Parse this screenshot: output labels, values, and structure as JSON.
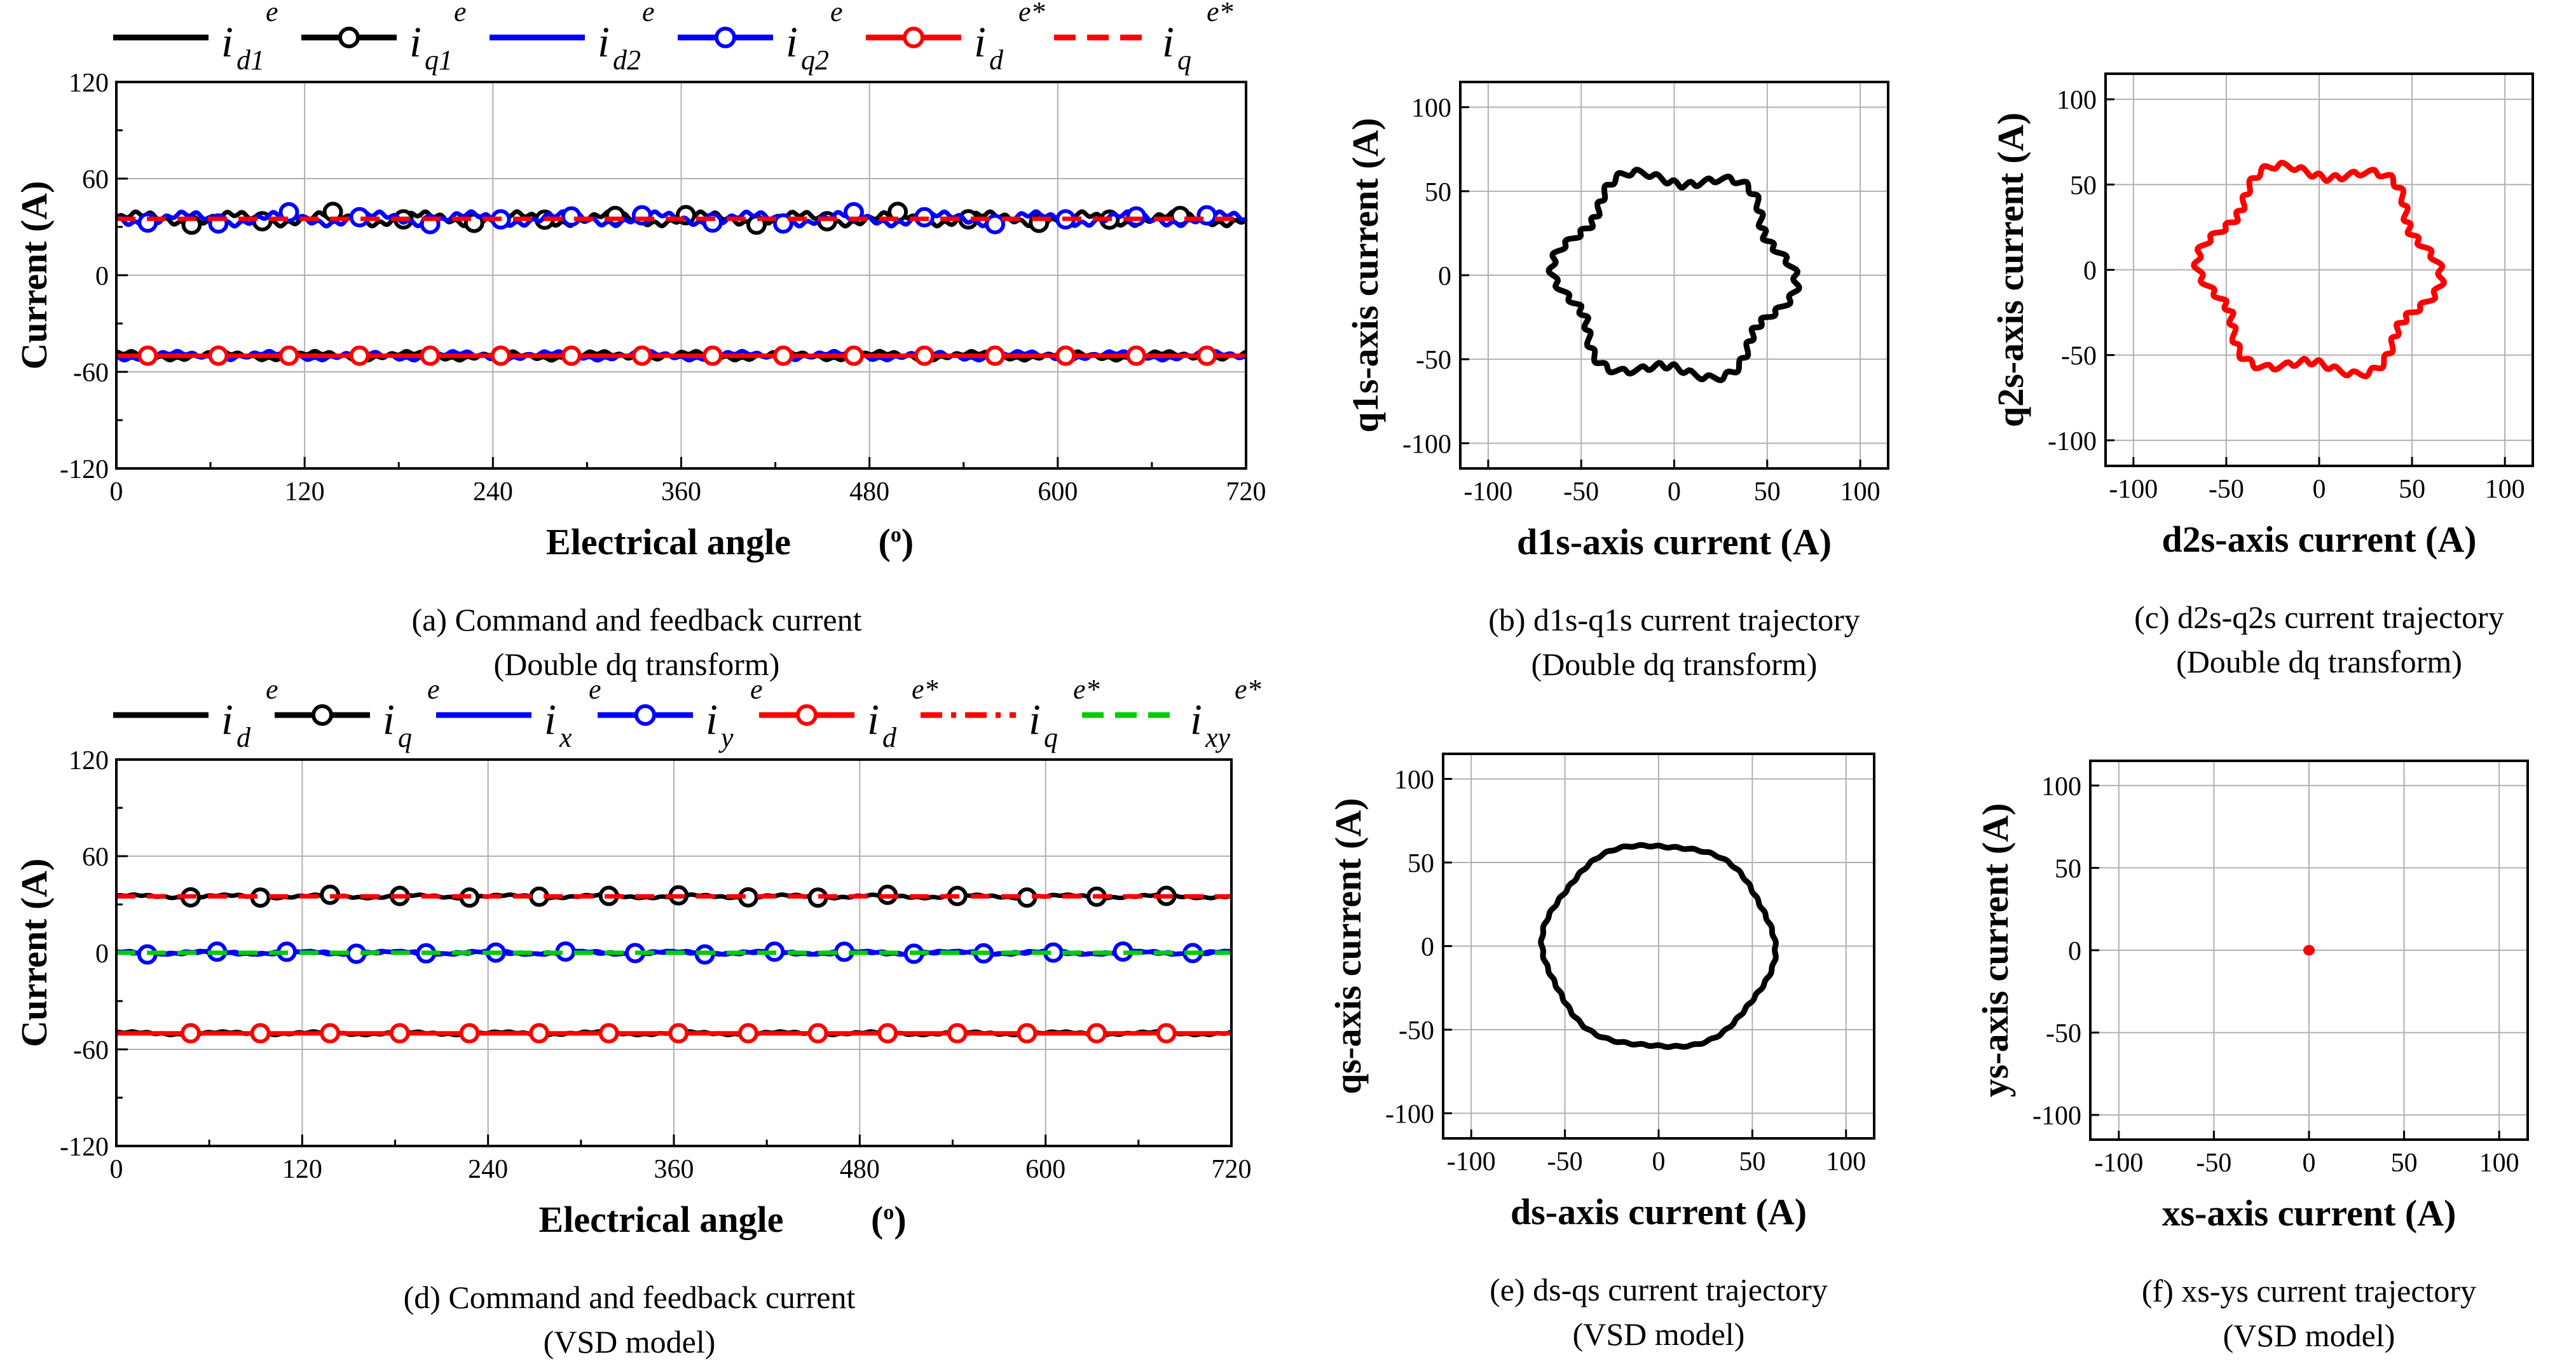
{
  "chart_data": [
    {
      "id": "a",
      "type": "line",
      "caption_line1": "(a)   Command and feedback current",
      "caption_line2": "(Double dq transform)",
      "xlabel": "Electrical angle",
      "xlabel_unit": "(o)",
      "ylabel": "Current (A)",
      "xlim": [
        0,
        720
      ],
      "ylim": [
        -120,
        120
      ],
      "xticks": [
        "0",
        "120",
        "240",
        "360",
        "480",
        "600",
        "720"
      ],
      "yticks": [
        "120",
        "60",
        "0",
        "-60",
        "-120"
      ],
      "legend": [
        {
          "base": "i",
          "sub": "d1",
          "sup": "e",
          "color": "#000000",
          "style": "solid",
          "marker": false
        },
        {
          "base": "i",
          "sub": "q1",
          "sup": "e",
          "color": "#000000",
          "style": "solid",
          "marker": true
        },
        {
          "base": "i",
          "sub": "d2",
          "sup": "e",
          "color": "#0000ff",
          "style": "solid",
          "marker": false
        },
        {
          "base": "i",
          "sub": "q2",
          "sup": "e",
          "color": "#0000ff",
          "style": "solid",
          "marker": true
        },
        {
          "base": "i",
          "sub": "d",
          "sup": "e*",
          "color": "#ff0000",
          "style": "solid",
          "marker": true
        },
        {
          "base": "i",
          "sub": "q",
          "sup": "e*",
          "color": "#ff0000",
          "style": "dashed",
          "marker": false
        }
      ],
      "series": [
        {
          "name": "iq1e",
          "mean": 35,
          "amp": 4,
          "color": "#000000",
          "marker": true,
          "phase": 0.0
        },
        {
          "name": "iq2e",
          "mean": 35,
          "amp": 4,
          "color": "#0000ff",
          "marker": true,
          "phase": 3.14
        },
        {
          "name": "iqe*",
          "mean": 35,
          "amp": 0,
          "color": "#ff0000",
          "marker": false,
          "dashed": true,
          "phase": 0
        },
        {
          "name": "id1e",
          "mean": -50,
          "amp": 2.5,
          "color": "#000000",
          "marker": false,
          "phase": 0.8
        },
        {
          "name": "id2e",
          "mean": -50,
          "amp": 2.5,
          "color": "#0000ff",
          "marker": false,
          "phase": 3.9
        },
        {
          "name": "ide*",
          "mean": -50,
          "amp": 0,
          "color": "#ff0000",
          "marker": true,
          "phase": 0
        }
      ]
    },
    {
      "id": "b",
      "type": "scatter",
      "caption_line1": "(b) d1s-q1s current trajectory",
      "caption_line2": "(Double dq transform)",
      "xlabel": "d1s-axis current (A)",
      "ylabel": "q1s-axis current (A)",
      "xlim": [
        -115,
        115
      ],
      "ylim": [
        -115,
        115
      ],
      "xticks": [
        "-100",
        "-50",
        "0",
        "50",
        "100"
      ],
      "yticks": [
        "100",
        "50",
        "0",
        "-50",
        "-100"
      ],
      "trajectory": {
        "radius": 60,
        "ripple": 6,
        "lobes": 6,
        "color": "#000000"
      }
    },
    {
      "id": "c",
      "type": "scatter",
      "caption_line1": "(c) d2s-q2s current trajectory",
      "caption_line2": "(Double dq transform)",
      "xlabel": "d2s-axis current (A)",
      "ylabel": "q2s-axis current (A)",
      "xlim": [
        -115,
        115
      ],
      "ylim": [
        -115,
        115
      ],
      "xticks": [
        "-100",
        "-50",
        "0",
        "50",
        "100"
      ],
      "yticks": [
        "100",
        "50",
        "0",
        "-50",
        "-100"
      ],
      "trajectory": {
        "radius": 60,
        "ripple": 6,
        "lobes": 6,
        "color": "#ff0000"
      }
    },
    {
      "id": "d",
      "type": "line",
      "caption_line1": "(d) Command and feedback current",
      "caption_line2": "(VSD model)",
      "xlabel": "Electrical angle",
      "xlabel_unit": "(o)",
      "ylabel": "Current (A)",
      "xlim": [
        0,
        720
      ],
      "ylim": [
        -120,
        120
      ],
      "xticks": [
        "0",
        "120",
        "240",
        "360",
        "480",
        "600",
        "720"
      ],
      "yticks": [
        "120",
        "60",
        "0",
        "-60",
        "-120"
      ],
      "legend": [
        {
          "base": "i",
          "sub": "d",
          "sup": "e",
          "color": "#000000",
          "style": "solid",
          "marker": false
        },
        {
          "base": "i",
          "sub": "q",
          "sup": "e",
          "color": "#000000",
          "style": "solid",
          "marker": true
        },
        {
          "base": "i",
          "sub": "x",
          "sup": "e",
          "color": "#0000ff",
          "style": "solid",
          "marker": false
        },
        {
          "base": "i",
          "sub": "y",
          "sup": "e",
          "color": "#0000ff",
          "style": "solid",
          "marker": true
        },
        {
          "base": "i",
          "sub": "d",
          "sup": "e*",
          "color": "#ff0000",
          "style": "solid",
          "marker": true
        },
        {
          "base": "i",
          "sub": "q",
          "sup": "e*",
          "color": "#ff0000",
          "style": "dashdot",
          "marker": false
        },
        {
          "base": "i",
          "sub": "xy",
          "sup": "e*",
          "color": "#00cc00",
          "style": "dashed",
          "marker": false
        }
      ],
      "series": [
        {
          "name": "iqe",
          "mean": 35,
          "amp": 1,
          "color": "#000000",
          "marker": true,
          "phase": 0.3
        },
        {
          "name": "iqe*",
          "mean": 35,
          "amp": 0,
          "color": "#ff0000",
          "marker": false,
          "dashed": true,
          "phase": 0
        },
        {
          "name": "ixe",
          "mean": 0,
          "amp": 1,
          "color": "#0000ff",
          "marker": false,
          "phase": 1.2
        },
        {
          "name": "iye",
          "mean": 0,
          "amp": 1,
          "color": "#0000ff",
          "marker": true,
          "phase": 2.1
        },
        {
          "name": "ixy*",
          "mean": 0,
          "amp": 0,
          "color": "#00cc00",
          "marker": false,
          "dashed": true,
          "phase": 0
        },
        {
          "name": "ide",
          "mean": -50,
          "amp": 1,
          "color": "#000000",
          "marker": false,
          "phase": 0.6
        },
        {
          "name": "ide*",
          "mean": -50,
          "amp": 0,
          "color": "#ff0000",
          "marker": true,
          "phase": 0
        }
      ]
    },
    {
      "id": "e",
      "type": "scatter",
      "caption_line1": "(e) ds-qs current trajectory",
      "caption_line2": "(VSD model)",
      "xlabel": "ds-axis current (A)",
      "ylabel": "qs-axis current (A)",
      "xlim": [
        -115,
        115
      ],
      "ylim": [
        -115,
        115
      ],
      "xticks": [
        "-100",
        "-50",
        "0",
        "50",
        "100"
      ],
      "yticks": [
        "100",
        "50",
        "0",
        "-50",
        "-100"
      ],
      "trajectory": {
        "radius": 61,
        "ripple": 1.5,
        "lobes": 6,
        "color": "#000000"
      }
    },
    {
      "id": "f",
      "type": "scatter",
      "caption_line1": "(f) xs-ys current trajectory",
      "caption_line2": "(VSD model)",
      "xlabel": "xs-axis current (A)",
      "ylabel": "ys-axis current (A)",
      "xlim": [
        -115,
        115
      ],
      "ylim": [
        -115,
        115
      ],
      "xticks": [
        "-100",
        "-50",
        "0",
        "50",
        "100"
      ],
      "yticks": [
        "100",
        "50",
        "0",
        "-50",
        "-100"
      ],
      "trajectory": {
        "radius": 1.5,
        "ripple": 0,
        "lobes": 6,
        "color": "#ff0000"
      }
    }
  ]
}
